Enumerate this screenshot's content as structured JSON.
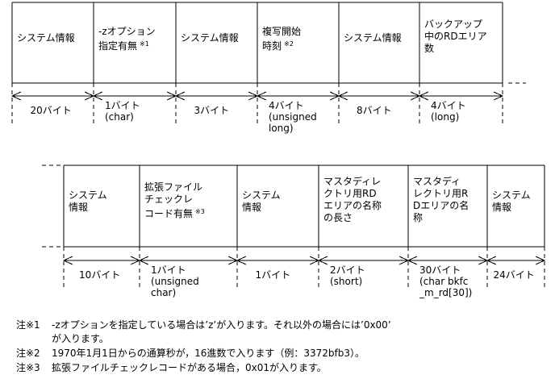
{
  "row1": {
    "fields": [
      {
        "label": "システム情報",
        "mark": "",
        "size": "20バイト",
        "type": ""
      },
      {
        "label": "-zオプション\n指定有無",
        "mark": "※1",
        "size": "1バイト",
        "type": "(char)"
      },
      {
        "label": "システム情報",
        "mark": "",
        "size": "3バイト",
        "type": ""
      },
      {
        "label": "複写開始\n時刻",
        "mark": "※2",
        "size": "4バイト",
        "type": "(unsigned\nlong)"
      },
      {
        "label": "システム情報",
        "mark": "",
        "size": "8バイト",
        "type": ""
      },
      {
        "label": "バックアップ\n中のRDエリア\n数",
        "mark": "",
        "size": "4バイト",
        "type": "(long)"
      }
    ]
  },
  "row2": {
    "fields": [
      {
        "label": "システム\n情報",
        "mark": "",
        "size": "10バイト",
        "type": ""
      },
      {
        "label": "拡張ファイル\nチェックレ\nコード有無",
        "mark": "※3",
        "size": "1バイト",
        "type": "(unsigned\nchar)"
      },
      {
        "label": "システム\n情報",
        "mark": "",
        "size": "1バイト",
        "type": ""
      },
      {
        "label": "マスタディレ\nクトリ用RD\nエリアの名称\nの長さ",
        "mark": "",
        "size": "2バイト",
        "type": "(short)"
      },
      {
        "label": "マスタディ\nレクトリ用R\nDエリアの名\n称",
        "mark": "",
        "size": "30バイト",
        "type": "(char bkfc\n_m_rd[30])"
      },
      {
        "label": "システム\n情報",
        "mark": "",
        "size": "24バイト",
        "type": ""
      }
    ]
  },
  "notes": [
    {
      "label": "注※1",
      "text": "-zオプションを指定している場合は’z’が入ります。それ以外の場合には’0x00’\nが入ります。"
    },
    {
      "label": "注※2",
      "text": "1970年1月1日からの通算秒が，16進数で入ります（例：3372bfb3）。"
    },
    {
      "label": "注※3",
      "text": "拡張ファイルチェックレコードがある場合，0x01が入ります。"
    }
  ]
}
